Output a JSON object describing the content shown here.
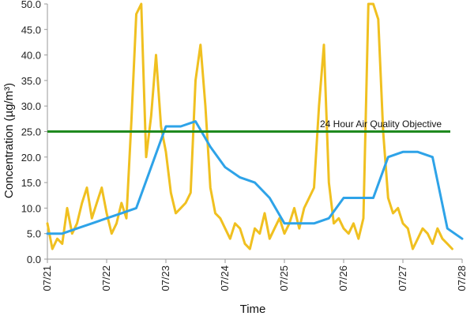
{
  "chart_data": {
    "type": "line",
    "xlabel": "Time",
    "ylabel": "Concentration (µg/m³)",
    "xlim": [
      "07/21 00:00",
      "07/28 00:00"
    ],
    "ylim": [
      0,
      50
    ],
    "x_tick_labels": [
      "07/21",
      "07/22",
      "07/23",
      "07/24",
      "07/25",
      "07/26",
      "07/27",
      "07/28"
    ],
    "y_tick_labels": [
      "0.0",
      "5.0",
      "10.0",
      "15.0",
      "20.0",
      "25.0",
      "30.0",
      "35.0",
      "40.0",
      "45.0",
      "50.0"
    ],
    "grid": false,
    "legend": "none",
    "annotation": "24 Hour Air Quality Objective",
    "series": [
      {
        "color": "#f0c020",
        "x": [
          "07/21 00:00",
          "07/21 02:00",
          "07/21 04:00",
          "07/21 06:00",
          "07/21 08:00",
          "07/21 10:00",
          "07/21 12:00",
          "07/21 14:00",
          "07/21 16:00",
          "07/21 18:00",
          "07/21 20:00",
          "07/21 22:00",
          "07/22 00:00",
          "07/22 02:00",
          "07/22 04:00",
          "07/22 06:00",
          "07/22 08:00",
          "07/22 10:00",
          "07/22 12:00",
          "07/22 14:00",
          "07/22 16:00",
          "07/22 18:00",
          "07/22 20:00",
          "07/22 22:00",
          "07/23 00:00",
          "07/23 02:00",
          "07/23 04:00",
          "07/23 06:00",
          "07/23 08:00",
          "07/23 10:00",
          "07/23 12:00",
          "07/23 14:00",
          "07/23 16:00",
          "07/23 18:00",
          "07/23 20:00",
          "07/23 22:00",
          "07/24 00:00",
          "07/24 02:00",
          "07/24 04:00",
          "07/24 06:00",
          "07/24 08:00",
          "07/24 10:00",
          "07/24 12:00",
          "07/24 14:00",
          "07/24 16:00",
          "07/24 18:00",
          "07/24 20:00",
          "07/24 22:00",
          "07/25 00:00",
          "07/25 02:00",
          "07/25 04:00",
          "07/25 06:00",
          "07/25 08:00",
          "07/25 10:00",
          "07/25 12:00",
          "07/25 14:00",
          "07/25 16:00",
          "07/25 18:00",
          "07/25 20:00",
          "07/25 22:00",
          "07/26 00:00",
          "07/26 02:00",
          "07/26 04:00",
          "07/26 06:00",
          "07/26 08:00",
          "07/26 10:00",
          "07/26 12:00",
          "07/26 14:00",
          "07/26 16:00",
          "07/26 18:00",
          "07/26 20:00",
          "07/26 22:00",
          "07/27 00:00",
          "07/27 02:00",
          "07/27 04:00",
          "07/27 06:00",
          "07/27 08:00",
          "07/27 10:00",
          "07/27 12:00",
          "07/27 14:00",
          "07/27 16:00",
          "07/27 18:00",
          "07/27 20:00"
        ],
        "values": [
          7,
          2,
          4,
          3,
          10,
          5,
          7,
          11,
          14,
          8,
          11,
          14,
          9,
          5,
          7,
          11,
          8,
          27,
          48,
          55,
          20,
          28,
          40,
          26,
          21,
          13,
          9,
          10,
          11,
          13,
          35,
          42,
          30,
          14,
          9,
          8,
          6,
          4,
          7,
          6,
          3,
          2,
          6,
          5,
          9,
          4,
          6,
          8,
          5,
          7,
          10,
          6,
          10,
          12,
          14,
          30,
          42,
          15,
          7,
          8,
          6,
          5,
          7,
          4,
          8,
          55,
          52,
          47,
          25,
          12,
          9,
          10,
          7,
          6,
          2,
          4,
          6,
          5,
          3,
          6,
          4,
          3,
          2
        ]
      },
      {
        "color": "#2ea3e8",
        "x": [
          "07/21 00:00",
          "07/21 06:00",
          "07/21 12:00",
          "07/21 18:00",
          "07/22 00:00",
          "07/22 06:00",
          "07/22 12:00",
          "07/22 18:00",
          "07/23 00:00",
          "07/23 06:00",
          "07/23 12:00",
          "07/23 18:00",
          "07/24 00:00",
          "07/24 06:00",
          "07/24 12:00",
          "07/24 18:00",
          "07/25 00:00",
          "07/25 06:00",
          "07/25 12:00",
          "07/25 18:00",
          "07/26 00:00",
          "07/26 06:00",
          "07/26 12:00",
          "07/26 18:00",
          "07/27 00:00",
          "07/27 06:00",
          "07/27 12:00",
          "07/27 18:00",
          "07/28 00:00"
        ],
        "values": [
          5,
          5,
          6,
          7,
          8,
          9,
          10,
          18,
          26,
          26,
          27,
          22,
          18,
          16,
          15,
          12,
          7,
          7,
          7,
          8,
          12,
          12,
          12,
          20,
          21,
          21,
          20,
          6,
          4
        ]
      }
    ],
    "reference_line": {
      "value": 25.0,
      "color": "#1f8a1f"
    }
  }
}
